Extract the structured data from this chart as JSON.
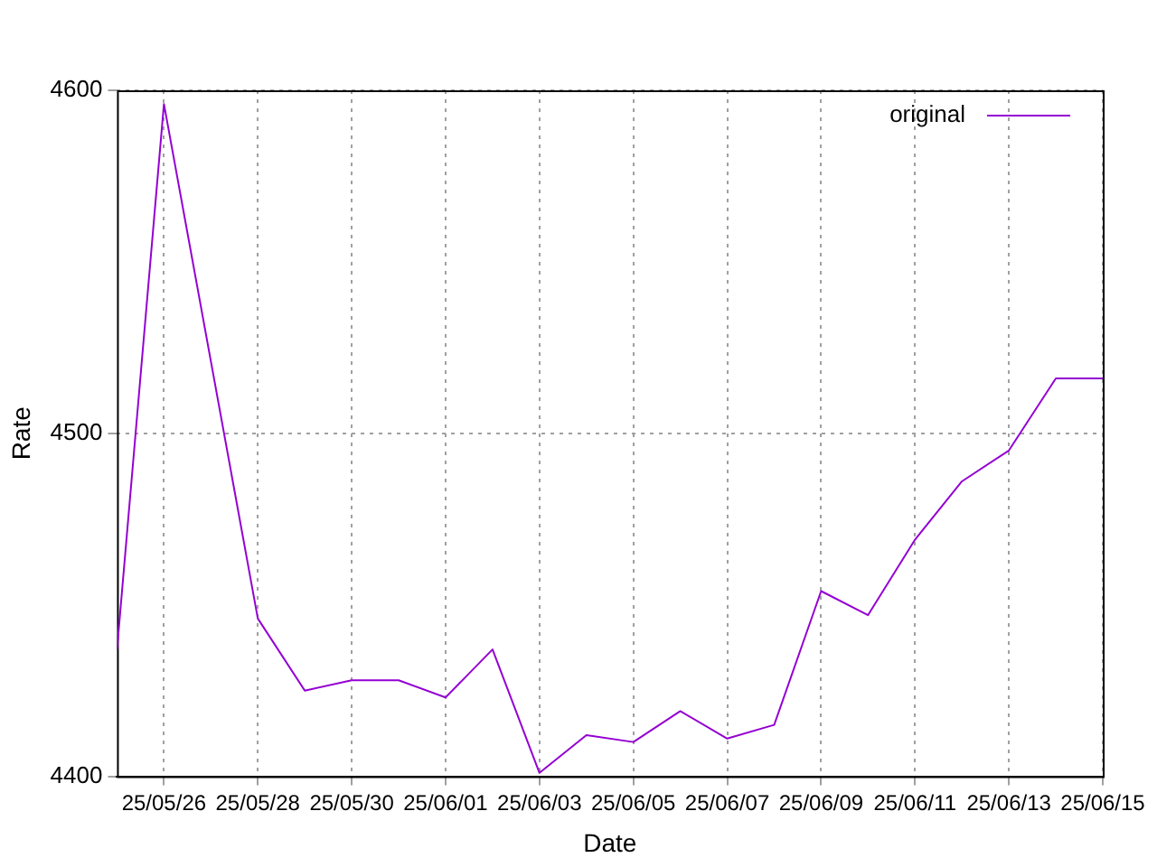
{
  "chart_data": {
    "type": "line",
    "xlabel": "Date",
    "ylabel": "Rate",
    "x": [
      "--05-25",
      "--05-26",
      "--05-28",
      "--05-29",
      "--05-30",
      "--05-31",
      "--06-01",
      "--06-02",
      "--06-03",
      "--06-04",
      "--06-05",
      "--06-06",
      "--06-07",
      "--06-08",
      "--06-09",
      "--06-10",
      "--06-11",
      "--06-12",
      "--06-13",
      "--06-14",
      "--06-15"
    ],
    "series": [
      {
        "name": "original",
        "color": "#9400d3",
        "values": [
          4437,
          4596,
          4446,
          4425,
          4428,
          4428,
          4423,
          4437,
          4401,
          4412,
          4410,
          4419,
          4411,
          4415,
          4454,
          4447,
          4469,
          4486,
          4495,
          4516,
          4516
        ]
      }
    ],
    "xlim": [
      "--05-25",
      "--06-15"
    ],
    "xticks": [
      {
        "value": "--05-26",
        "label": "25/05/26"
      },
      {
        "value": "--05-28",
        "label": "25/05/28"
      },
      {
        "value": "--05-30",
        "label": "25/05/30"
      },
      {
        "value": "--06-01",
        "label": "25/06/01"
      },
      {
        "value": "--06-03",
        "label": "25/06/03"
      },
      {
        "value": "--06-05",
        "label": "25/06/05"
      },
      {
        "value": "--06-07",
        "label": "25/06/07"
      },
      {
        "value": "--06-09",
        "label": "25/06/09"
      },
      {
        "value": "--06-11",
        "label": "25/06/11"
      },
      {
        "value": "--06-13",
        "label": "25/06/13"
      },
      {
        "value": "--06-15",
        "label": "25/06/15"
      }
    ],
    "ylim": [
      4400,
      4600
    ],
    "yticks": [
      4400,
      4500,
      4600
    ],
    "grid": true,
    "legend": "top right",
    "marker": "none",
    "line_style": "solid"
  }
}
